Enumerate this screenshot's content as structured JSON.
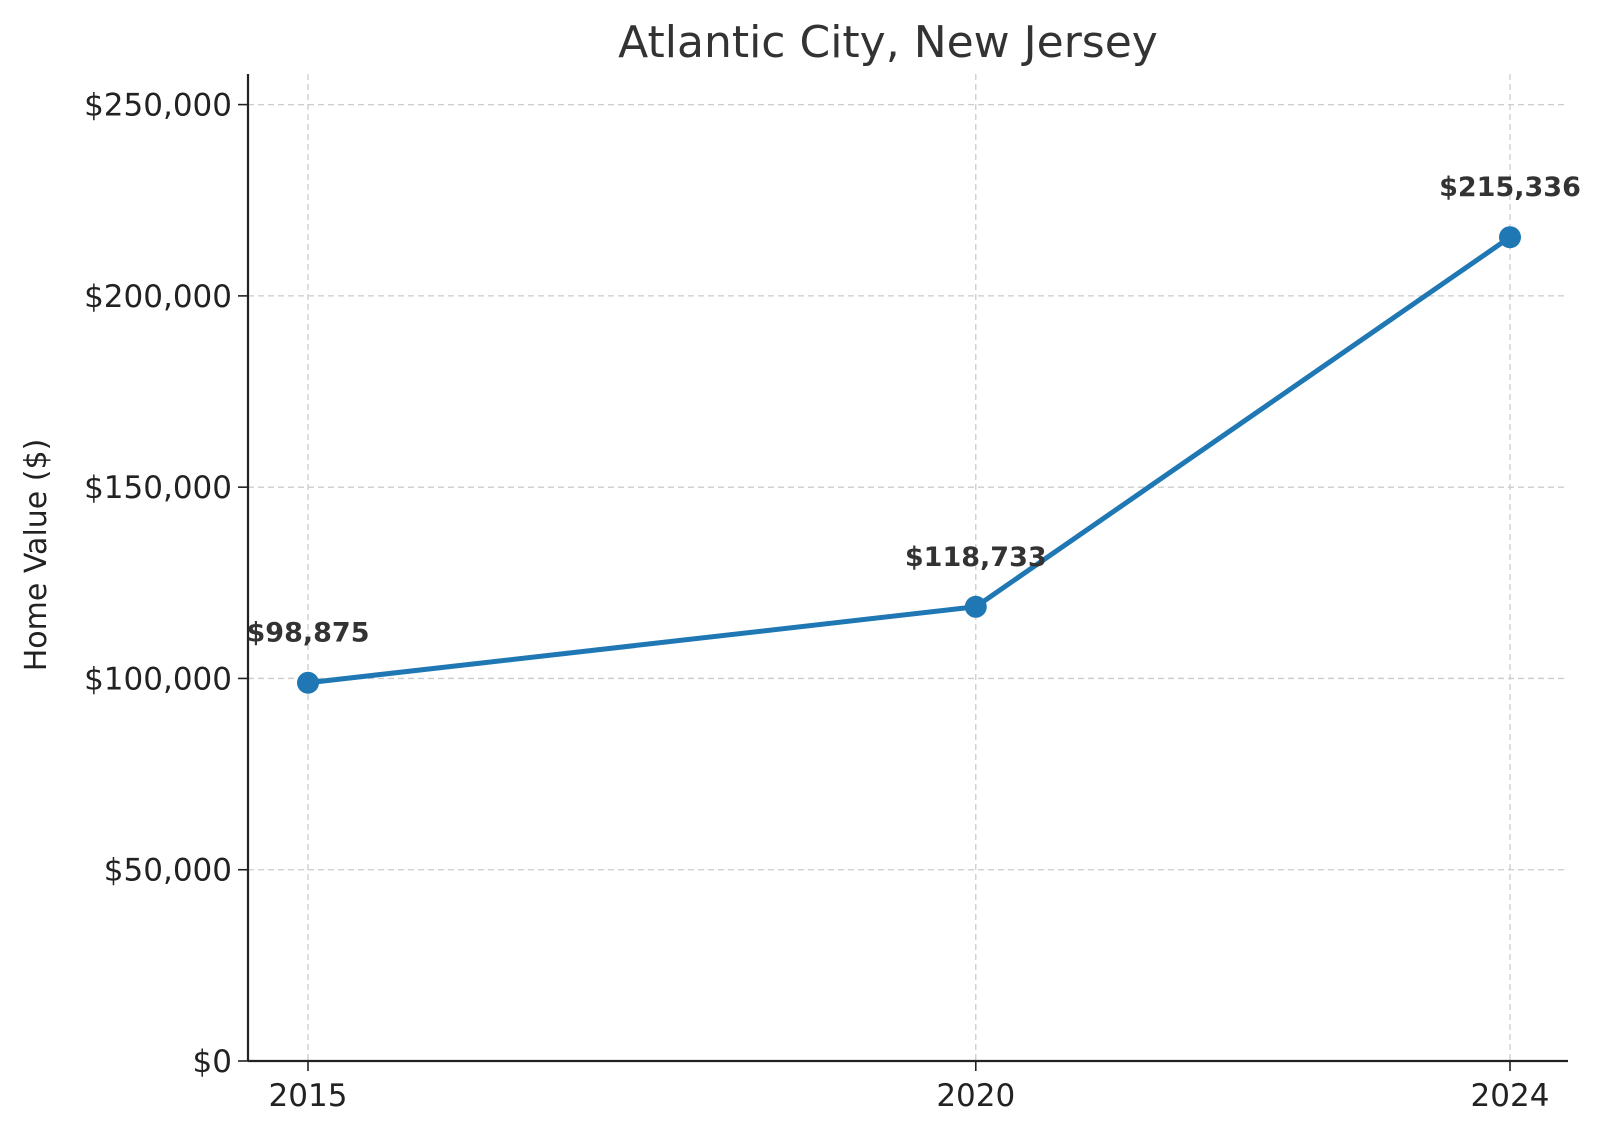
{
  "chart_data": {
    "type": "line",
    "title": "Atlantic City, New Jersey",
    "xlabel": "",
    "ylabel": "Home Value ($)",
    "categories": [
      "2015",
      "2020",
      "2024"
    ],
    "x": [
      2015,
      2020,
      2024
    ],
    "series": [
      {
        "values": [
          98875,
          118733,
          215336
        ],
        "color": "#1f77b4"
      }
    ],
    "data_labels": [
      "$98,875",
      "$118,733",
      "$215,336"
    ],
    "y_ticks": [
      0,
      50000,
      100000,
      150000,
      200000,
      250000
    ],
    "y_tick_labels": [
      "$0",
      "$50,000",
      "$100,000",
      "$150,000",
      "$200,000",
      "$250,000"
    ],
    "ylim": [
      0,
      258000
    ],
    "grid": true,
    "legend": "none"
  }
}
